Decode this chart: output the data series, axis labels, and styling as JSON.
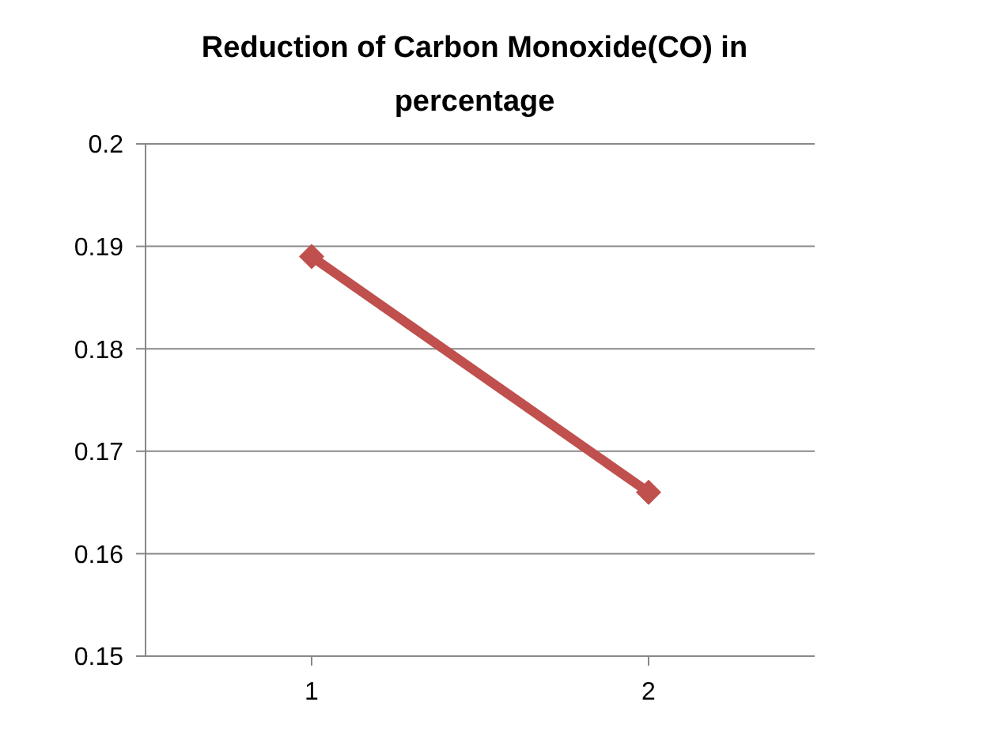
{
  "chart_data": {
    "type": "line",
    "title": "Reduction of Carbon Monoxide(CO) in percentage",
    "categories": [
      "1",
      "2"
    ],
    "series": [
      {
        "color": "#c0504d",
        "values": [
          0.189,
          0.166
        ]
      }
    ],
    "ylim": [
      0.15,
      0.2
    ],
    "yticks": [
      0.15,
      0.16,
      0.17,
      0.18,
      0.19,
      0.2
    ],
    "grid": "y",
    "legend": false,
    "marker": "diamond",
    "line_style": "solid"
  }
}
